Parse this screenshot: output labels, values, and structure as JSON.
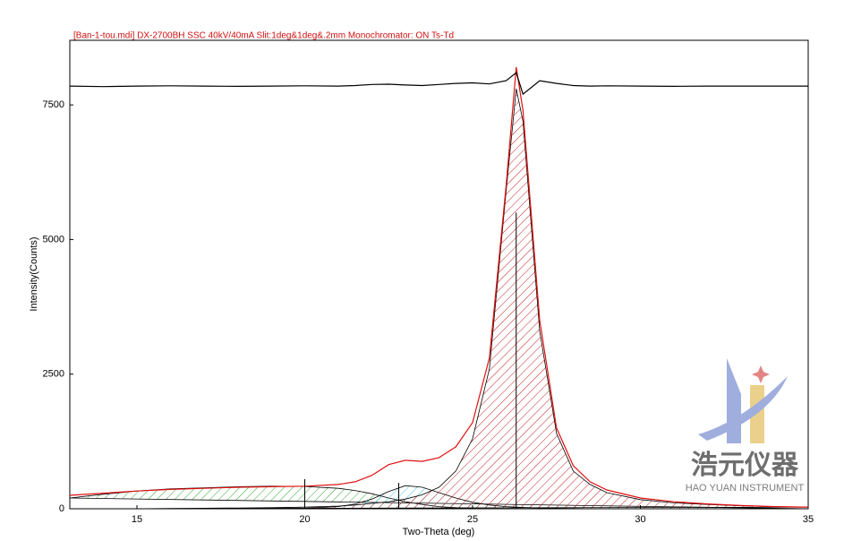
{
  "chart_data": {
    "type": "line",
    "title": "[Ban-1-tou.mdi] DX-2700BH SSC 40kV/40mA Slit:1deg&1deg&.2mm Monochromator: ON Ts-Td",
    "x_label": "Two-Theta (deg)",
    "y_label": "Intensity(Counts)",
    "xlim": [
      13,
      35
    ],
    "ylim": [
      0,
      8700
    ],
    "xticks": [
      15,
      20,
      25,
      30,
      35
    ],
    "yticks": [
      0,
      2500,
      5000,
      7500
    ],
    "x": [
      13,
      14,
      15,
      16,
      17,
      18,
      19,
      20,
      21,
      21.5,
      22,
      22.5,
      23,
      23.5,
      24,
      24.5,
      25,
      25.5,
      26,
      26.3,
      26.5,
      27,
      27.5,
      28,
      28.5,
      29,
      30,
      31,
      32,
      33,
      34,
      35
    ],
    "areas": [
      {
        "color": "#2eaa2e",
        "values": [
          200,
          270,
          330,
          370,
          390,
          410,
          420,
          415,
          380,
          340,
          280,
          200,
          130,
          80,
          40,
          20,
          5,
          0,
          0,
          0,
          0,
          0,
          0,
          0,
          0,
          0,
          0,
          0,
          0,
          0,
          0,
          0
        ]
      },
      {
        "color": "#3cc0dc",
        "values": [
          0,
          0,
          0,
          0,
          0,
          0,
          0,
          10,
          40,
          90,
          180,
          320,
          430,
          400,
          300,
          200,
          120,
          70,
          40,
          30,
          25,
          15,
          10,
          5,
          0,
          0,
          0,
          0,
          0,
          0,
          0,
          0
        ]
      },
      {
        "color": "#c42020",
        "values": [
          0,
          0,
          0,
          5,
          10,
          15,
          20,
          30,
          50,
          70,
          100,
          130,
          180,
          260,
          400,
          700,
          1300,
          2600,
          5900,
          7800,
          7200,
          3300,
          1400,
          700,
          450,
          300,
          170,
          110,
          80,
          55,
          40,
          30
        ]
      }
    ],
    "series": [
      {
        "color": "#e01010",
        "values": [
          250,
          290,
          330,
          360,
          380,
          400,
          410,
          420,
          450,
          500,
          620,
          820,
          900,
          880,
          950,
          1150,
          1600,
          2800,
          6000,
          8200,
          7400,
          3500,
          1500,
          800,
          500,
          350,
          200,
          130,
          90,
          60,
          40,
          30
        ]
      },
      {
        "color": "#000000",
        "values": [
          7850,
          7840,
          7850,
          7855,
          7850,
          7845,
          7850,
          7855,
          7850,
          7860,
          7880,
          7885,
          7870,
          7860,
          7880,
          7900,
          7910,
          7890,
          7950,
          8100,
          7700,
          7950,
          7900,
          7860,
          7850,
          7855,
          7850,
          7845,
          7850,
          7850,
          7850,
          7850
        ]
      }
    ],
    "peaks": {
      "x": [
        20,
        22.8,
        26.3
      ],
      "values": [
        550,
        480,
        5500
      ]
    },
    "annotations": [
      "浩元仪器",
      "HAO YUAN INSTRUMENT"
    ]
  }
}
